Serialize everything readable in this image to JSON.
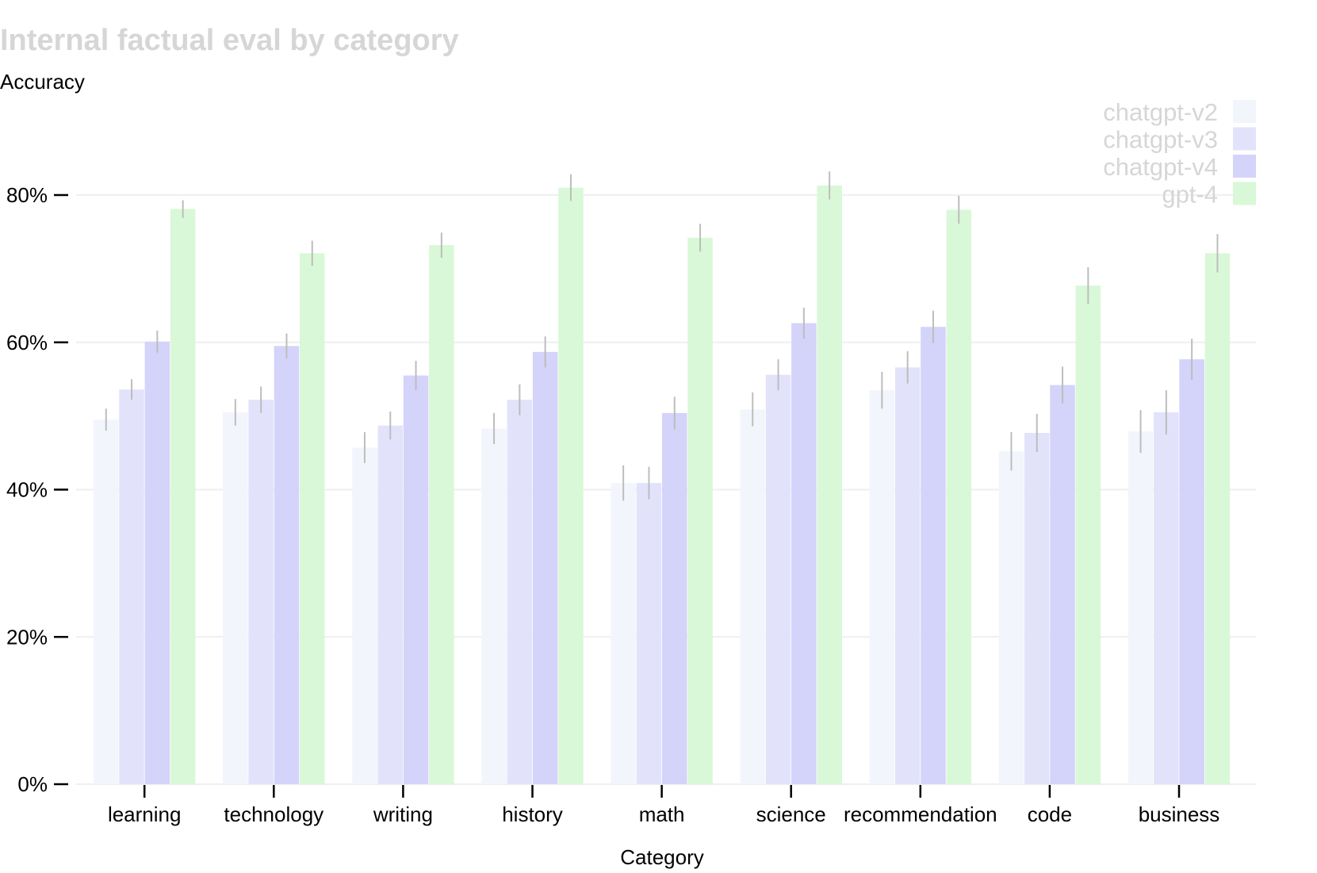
{
  "chart_data": {
    "type": "bar",
    "title": "Internal factual eval by category",
    "ylabel": "Accuracy",
    "xlabel": "Category",
    "ylim": [
      0,
      0.86
    ],
    "yticks": [
      0,
      0.2,
      0.4,
      0.6,
      0.8
    ],
    "ytick_labels": [
      "0%",
      "20%",
      "40%",
      "60%",
      "80%"
    ],
    "grid": true,
    "legend_position": "top-right",
    "categories": [
      "learning",
      "technology",
      "writing",
      "history",
      "math",
      "science",
      "recommendation",
      "code",
      "business"
    ],
    "series": [
      {
        "name": "chatgpt-v2",
        "color": "#f3f5fd",
        "values": [
          0.495,
          0.505,
          0.457,
          0.483,
          0.409,
          0.509,
          0.535,
          0.452,
          0.479
        ],
        "errors": [
          0.015,
          0.018,
          0.021,
          0.021,
          0.024,
          0.023,
          0.025,
          0.026,
          0.029
        ]
      },
      {
        "name": "chatgpt-v3",
        "color": "#e2e3fb",
        "values": [
          0.536,
          0.522,
          0.487,
          0.522,
          0.409,
          0.556,
          0.566,
          0.477,
          0.505
        ],
        "errors": [
          0.014,
          0.018,
          0.019,
          0.021,
          0.022,
          0.021,
          0.022,
          0.026,
          0.03
        ]
      },
      {
        "name": "chatgpt-v4",
        "color": "#d4d3fa",
        "values": [
          0.601,
          0.595,
          0.555,
          0.587,
          0.504,
          0.626,
          0.621,
          0.542,
          0.577
        ],
        "errors": [
          0.015,
          0.017,
          0.02,
          0.021,
          0.022,
          0.021,
          0.022,
          0.025,
          0.028
        ]
      },
      {
        "name": "gpt-4",
        "color": "#d9f8d7",
        "values": [
          0.781,
          0.721,
          0.732,
          0.81,
          0.742,
          0.813,
          0.78,
          0.677,
          0.721
        ],
        "errors": [
          0.012,
          0.017,
          0.017,
          0.018,
          0.019,
          0.019,
          0.019,
          0.025,
          0.026
        ]
      }
    ]
  },
  "colors": {
    "grid": "#efefef",
    "axis": "#000000",
    "error_bar": "#bdbdbd",
    "title": "#d6d6d6",
    "legend_text": "#d6d6d6"
  }
}
